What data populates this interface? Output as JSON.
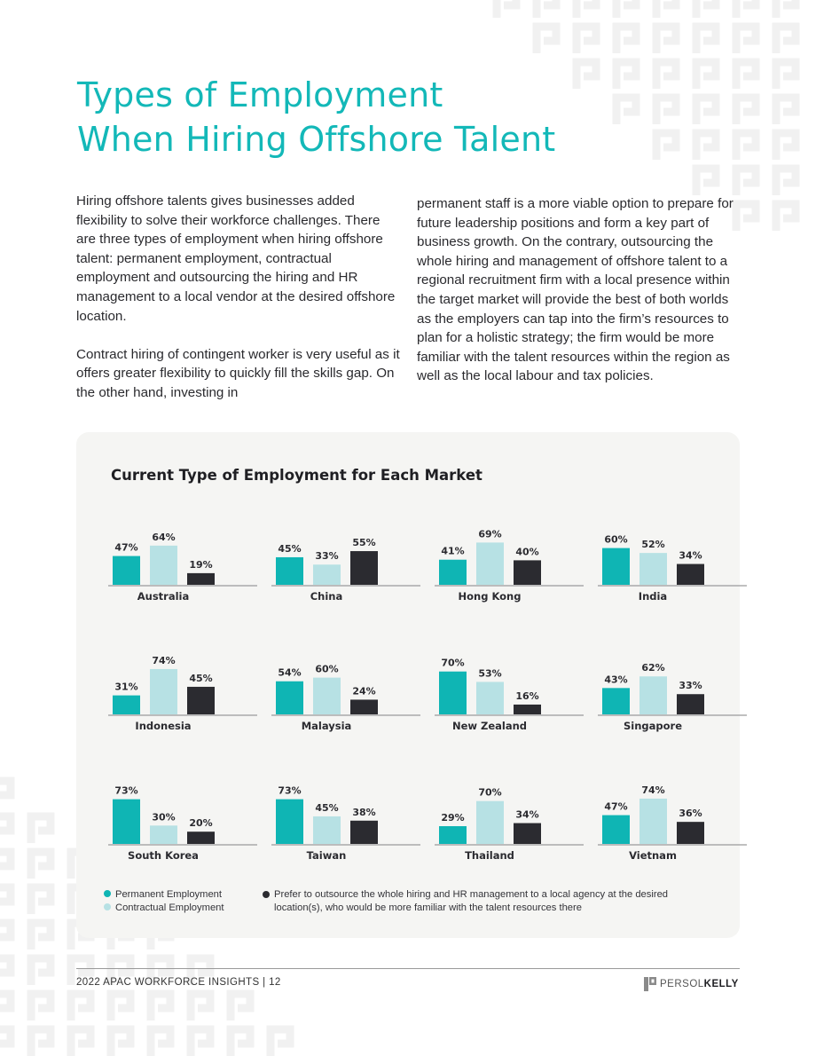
{
  "title": {
    "line1": "Types of Employment",
    "line2": "When Hiring Offshore Talent"
  },
  "body": {
    "col1_p1": "Hiring offshore talents gives businesses added flexibility to solve their workforce challenges. There are three types of employment when hiring offshore talent: permanent employment, contractual employment and outsourcing the hiring and HR management to a local vendor at the desired offshore location.",
    "col1_p2": "Contract hiring of contingent worker is very useful as it offers greater flexibility to quickly fill the skills gap. On the other hand, investing in",
    "col2_p1": "permanent staff is a more viable option to prepare for future leadership positions and form a key part of business growth. On the contrary, outsourcing the whole hiring and management of offshore talent to a regional recruitment firm with a local presence within the target market will provide the best of both worlds as the employers can tap into the firm’s resources to plan for a holistic strategy; the firm would be more familiar with the talent resources within the region as well as the local labour and tax policies."
  },
  "chart_data": {
    "type": "bar",
    "title": "Current Type of Employment for Each Market",
    "unit": "%",
    "series_names": [
      "Permanent Employment",
      "Contractual Employment",
      "Prefer to outsource the whole hiring and HR management to a local agency at the desired location(s), who would be more familiar with the talent resources there"
    ],
    "colors": [
      "#0fb5b4",
      "#b7e1e4",
      "#2b2b30"
    ],
    "markets": [
      {
        "name": "Australia",
        "values": [
          47,
          64,
          19
        ]
      },
      {
        "name": "China",
        "values": [
          45,
          33,
          55
        ]
      },
      {
        "name": "Hong Kong",
        "values": [
          41,
          69,
          40
        ]
      },
      {
        "name": "India",
        "values": [
          60,
          52,
          34
        ]
      },
      {
        "name": "Indonesia",
        "values": [
          31,
          74,
          45
        ]
      },
      {
        "name": "Malaysia",
        "values": [
          54,
          60,
          24
        ]
      },
      {
        "name": "New Zealand",
        "values": [
          70,
          53,
          16
        ]
      },
      {
        "name": "Singapore",
        "values": [
          43,
          62,
          33
        ]
      },
      {
        "name": "South Korea",
        "values": [
          73,
          30,
          20
        ]
      },
      {
        "name": "Taiwan",
        "values": [
          73,
          45,
          38
        ]
      },
      {
        "name": "Thailand",
        "values": [
          29,
          70,
          34
        ]
      },
      {
        "name": "Vietnam",
        "values": [
          47,
          74,
          36
        ]
      }
    ]
  },
  "legend": {
    "permanent": "Permanent Employment",
    "contractual": "Contractual Employment",
    "outsource": "Prefer to outsource the whole hiring and HR management to a local agency at the desired location(s), who would be more familiar with the talent resources there"
  },
  "footer": {
    "text": "2022 APAC WORKFORCE INSIGHTS  |  12",
    "logo_left": "PERSOL",
    "logo_right": "KELLY"
  }
}
